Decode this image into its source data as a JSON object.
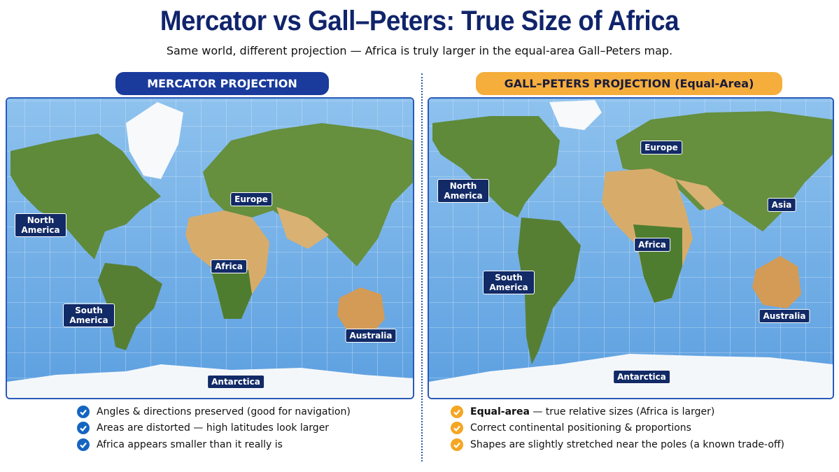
{
  "header": {
    "title": "Mercator vs Gall–Peters: True Size of Africa",
    "subtitle": "Same world, different projection — Africa is truly larger in the equal-area Gall–Peters map."
  },
  "panels": [
    {
      "label": "MERCATOR PROJECTION",
      "map_labels": [
        "Europe",
        "North America",
        "Africa",
        "South America",
        "Australia",
        "Antarctica"
      ],
      "bullets": [
        {
          "text": "Angles & directions preserved (good for navigation)"
        },
        {
          "text": "Areas are distorted — high latitudes look larger"
        },
        {
          "text": "Africa appears smaller than it really is"
        }
      ]
    },
    {
      "label": "GALL–PETERS PROJECTION (Equal-Area)",
      "map_labels": [
        "Europe",
        "North America",
        "Asia",
        "Africa",
        "South America",
        "Australia",
        "Antarctica"
      ],
      "bullets": [
        {
          "bold": "Equal-area",
          "text": "— true relative sizes (Africa is larger)"
        },
        {
          "text": "Correct continental positioning & proportions"
        },
        {
          "text": "Shapes are slightly stretched near the poles (a known trade-off)"
        }
      ]
    }
  ]
}
